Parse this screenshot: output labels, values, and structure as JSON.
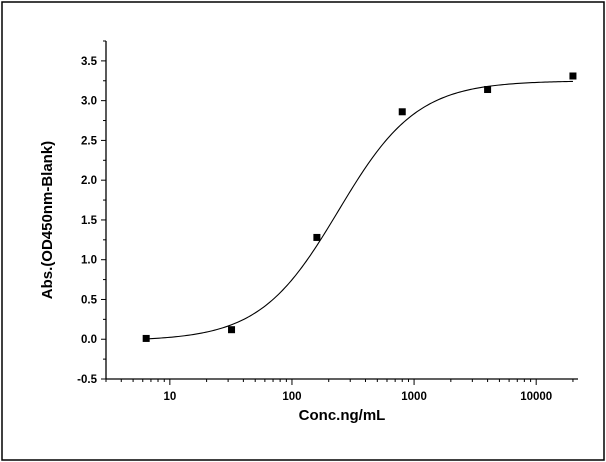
{
  "chart_data": {
    "type": "scatter",
    "xlabel": "Conc.ng/mL",
    "ylabel": "Abs.(OD450nm-Blank)",
    "xscale": "log",
    "xlim": [
      3.0,
      22000
    ],
    "ylim": [
      -0.5,
      3.75
    ],
    "x_ticks": [
      10,
      100,
      1000,
      10000
    ],
    "x_tick_labels": [
      "10",
      "100",
      "1000",
      "10000"
    ],
    "y_ticks": [
      -0.5,
      0.0,
      0.5,
      1.0,
      1.5,
      2.0,
      2.5,
      3.0,
      3.5
    ],
    "y_tick_labels": [
      "-0.5",
      "0.0",
      "0.5",
      "1.0",
      "1.5",
      "2.0",
      "2.5",
      "3.0",
      "3.5"
    ],
    "grid": false,
    "legend": "none",
    "points": {
      "x": [
        6.4,
        32,
        160,
        800,
        4000,
        20000
      ],
      "y": [
        0.01,
        0.12,
        1.28,
        2.86,
        3.14,
        3.31
      ]
    },
    "fit_curve": {
      "type": "4PL",
      "bottom": -0.02,
      "top": 3.25,
      "ec50": 240,
      "hill": 1.35
    },
    "colors": {
      "points": "#000000",
      "curve": "#000000",
      "axes": "#000000"
    }
  }
}
